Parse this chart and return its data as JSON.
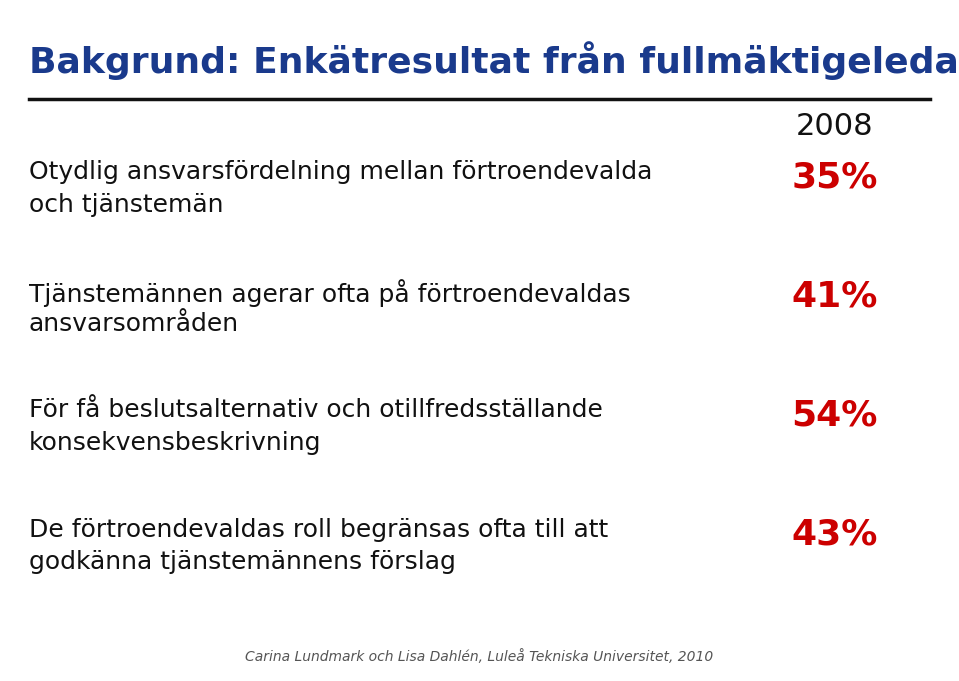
{
  "title": "Bakgrund: Enkätresultat från fullmäktigeledamöter",
  "title_color": "#1a3a8c",
  "title_fontsize": 26,
  "header_year": "2008",
  "header_year_color": "#111111",
  "header_year_fontsize": 22,
  "background_color": "#ffffff",
  "line_color": "#111111",
  "rows": [
    {
      "text": "Otydlig ansvarsfördelning mellan förtroendevalda\noch tjänstemän",
      "value": "35%"
    },
    {
      "text": "Tjänstemännen agerar ofta på förtroendevaldas\nansvarsområden",
      "value": "41%"
    },
    {
      "text": "För få beslutsalternativ och otillfredsställande\nkonsekvensbeskrivning",
      "value": "54%"
    },
    {
      "text": "De förtroendevaldas roll begränsas ofta till att\ngodkänna tjänstemännens förslag",
      "value": "43%"
    }
  ],
  "text_color": "#111111",
  "value_color": "#cc0000",
  "text_fontsize": 18,
  "value_fontsize": 26,
  "footer": "Carina Lundmark och Lisa Dahlén, Luleå Tekniska Universitet, 2010",
  "footer_fontsize": 10,
  "footer_color": "#555555"
}
